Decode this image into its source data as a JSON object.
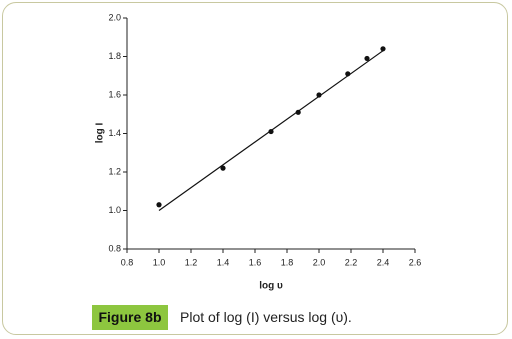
{
  "chart_data": {
    "type": "scatter",
    "x_label": "log υ",
    "y_label": "log I",
    "x": [
      1.0,
      1.4,
      1.7,
      1.87,
      2.0,
      2.18,
      2.3,
      2.4
    ],
    "values": [
      1.03,
      1.22,
      1.41,
      1.51,
      1.6,
      1.71,
      1.79,
      1.84
    ],
    "color": "#111111",
    "fit_line": {
      "x": [
        1.0,
        2.4
      ],
      "values": [
        1.0,
        1.83
      ]
    },
    "xlim": [
      0.8,
      2.6
    ],
    "xticks": [
      0.8,
      {
        "value": 1,
        "label": "1.0"
      },
      1.2,
      1.4,
      1.6,
      1.8,
      {
        "value": 2,
        "label": "2.0"
      },
      2.2,
      2.4,
      2.6
    ],
    "ylim": [
      0.8,
      2.0
    ],
    "yticks": [
      0.8,
      {
        "value": 1,
        "label": "1.0"
      },
      1.2,
      1.4,
      1.6,
      1.8,
      {
        "value": 2,
        "label": "2.0"
      }
    ],
    "grid": false
  },
  "caption": {
    "label": "Figure 8b",
    "text": "Plot of log (I) versus log (υ)."
  }
}
